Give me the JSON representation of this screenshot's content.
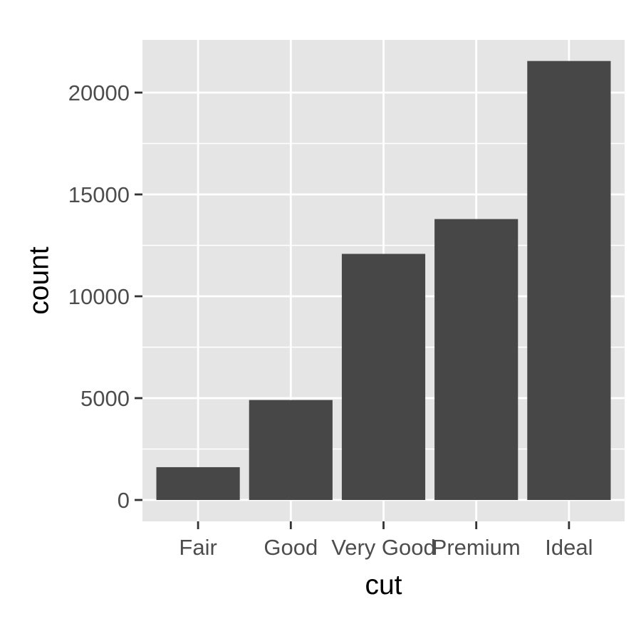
{
  "chart_data": {
    "type": "bar",
    "title": "",
    "xlabel": "cut",
    "ylabel": "count",
    "categories": [
      "Fair",
      "Good",
      "Very Good",
      "Premium",
      "Ideal"
    ],
    "values": [
      1610,
      4906,
      12082,
      13791,
      21551
    ],
    "ylim": [
      0,
      22632
    ],
    "yticks": [
      0,
      5000,
      10000,
      15000,
      20000
    ],
    "ytick_labels": [
      "0",
      "5000",
      "10000",
      "15000",
      "20000"
    ],
    "grid": true,
    "legend": "none",
    "colors": {
      "panel_background": "#e5e5e5",
      "grid_major": "#ffffff",
      "bar_fill": "#474747",
      "tick_mark": "#333333",
      "tick_text": "#4d4d4d",
      "title_text": "#000000"
    }
  }
}
